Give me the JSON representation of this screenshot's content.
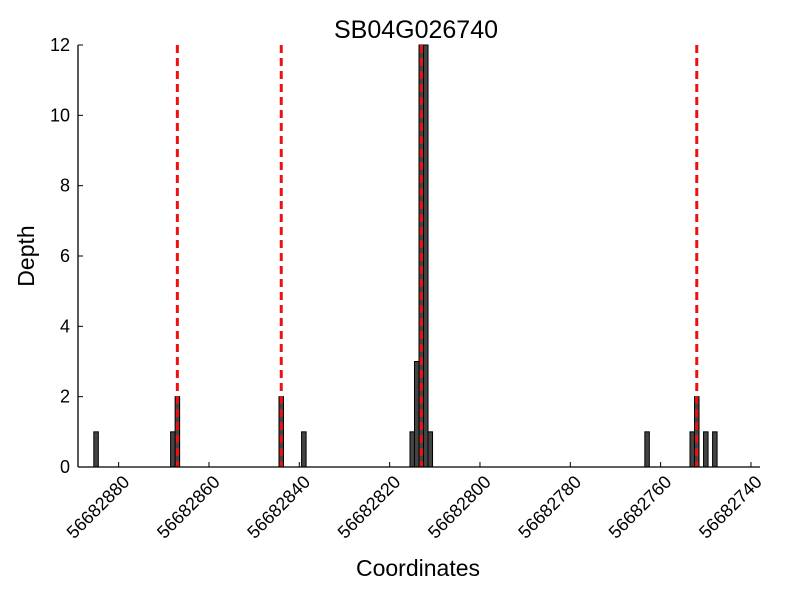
{
  "chart_data": {
    "type": "bar",
    "title": "SB04G026740",
    "xlabel": "Coordinates",
    "ylabel": "Depth",
    "x_reversed": true,
    "xlim": [
      56682889,
      56682738
    ],
    "ylim": [
      0,
      12
    ],
    "xticks": [
      56682880,
      56682860,
      56682840,
      56682820,
      56682800,
      56682780,
      56682760,
      56682740
    ],
    "yticks": [
      0,
      2,
      4,
      6,
      8,
      10,
      12
    ],
    "bar_color": "#444444",
    "bars": [
      {
        "x": 56682885,
        "value": 1
      },
      {
        "x": 56682868,
        "value": 1
      },
      {
        "x": 56682867,
        "value": 2
      },
      {
        "x": 56682844,
        "value": 2
      },
      {
        "x": 56682839,
        "value": 1
      },
      {
        "x": 56682815,
        "value": 1
      },
      {
        "x": 56682814,
        "value": 3
      },
      {
        "x": 56682813,
        "value": 12
      },
      {
        "x": 56682812,
        "value": 12
      },
      {
        "x": 56682811,
        "value": 1
      },
      {
        "x": 56682763,
        "value": 1
      },
      {
        "x": 56682753,
        "value": 1
      },
      {
        "x": 56682752,
        "value": 2
      },
      {
        "x": 56682750,
        "value": 1
      },
      {
        "x": 56682748,
        "value": 1
      }
    ],
    "reference_lines": {
      "color": "#ee1111",
      "style": "dashed",
      "x": [
        56682867,
        56682844,
        56682813,
        56682752
      ]
    },
    "grid": false
  }
}
